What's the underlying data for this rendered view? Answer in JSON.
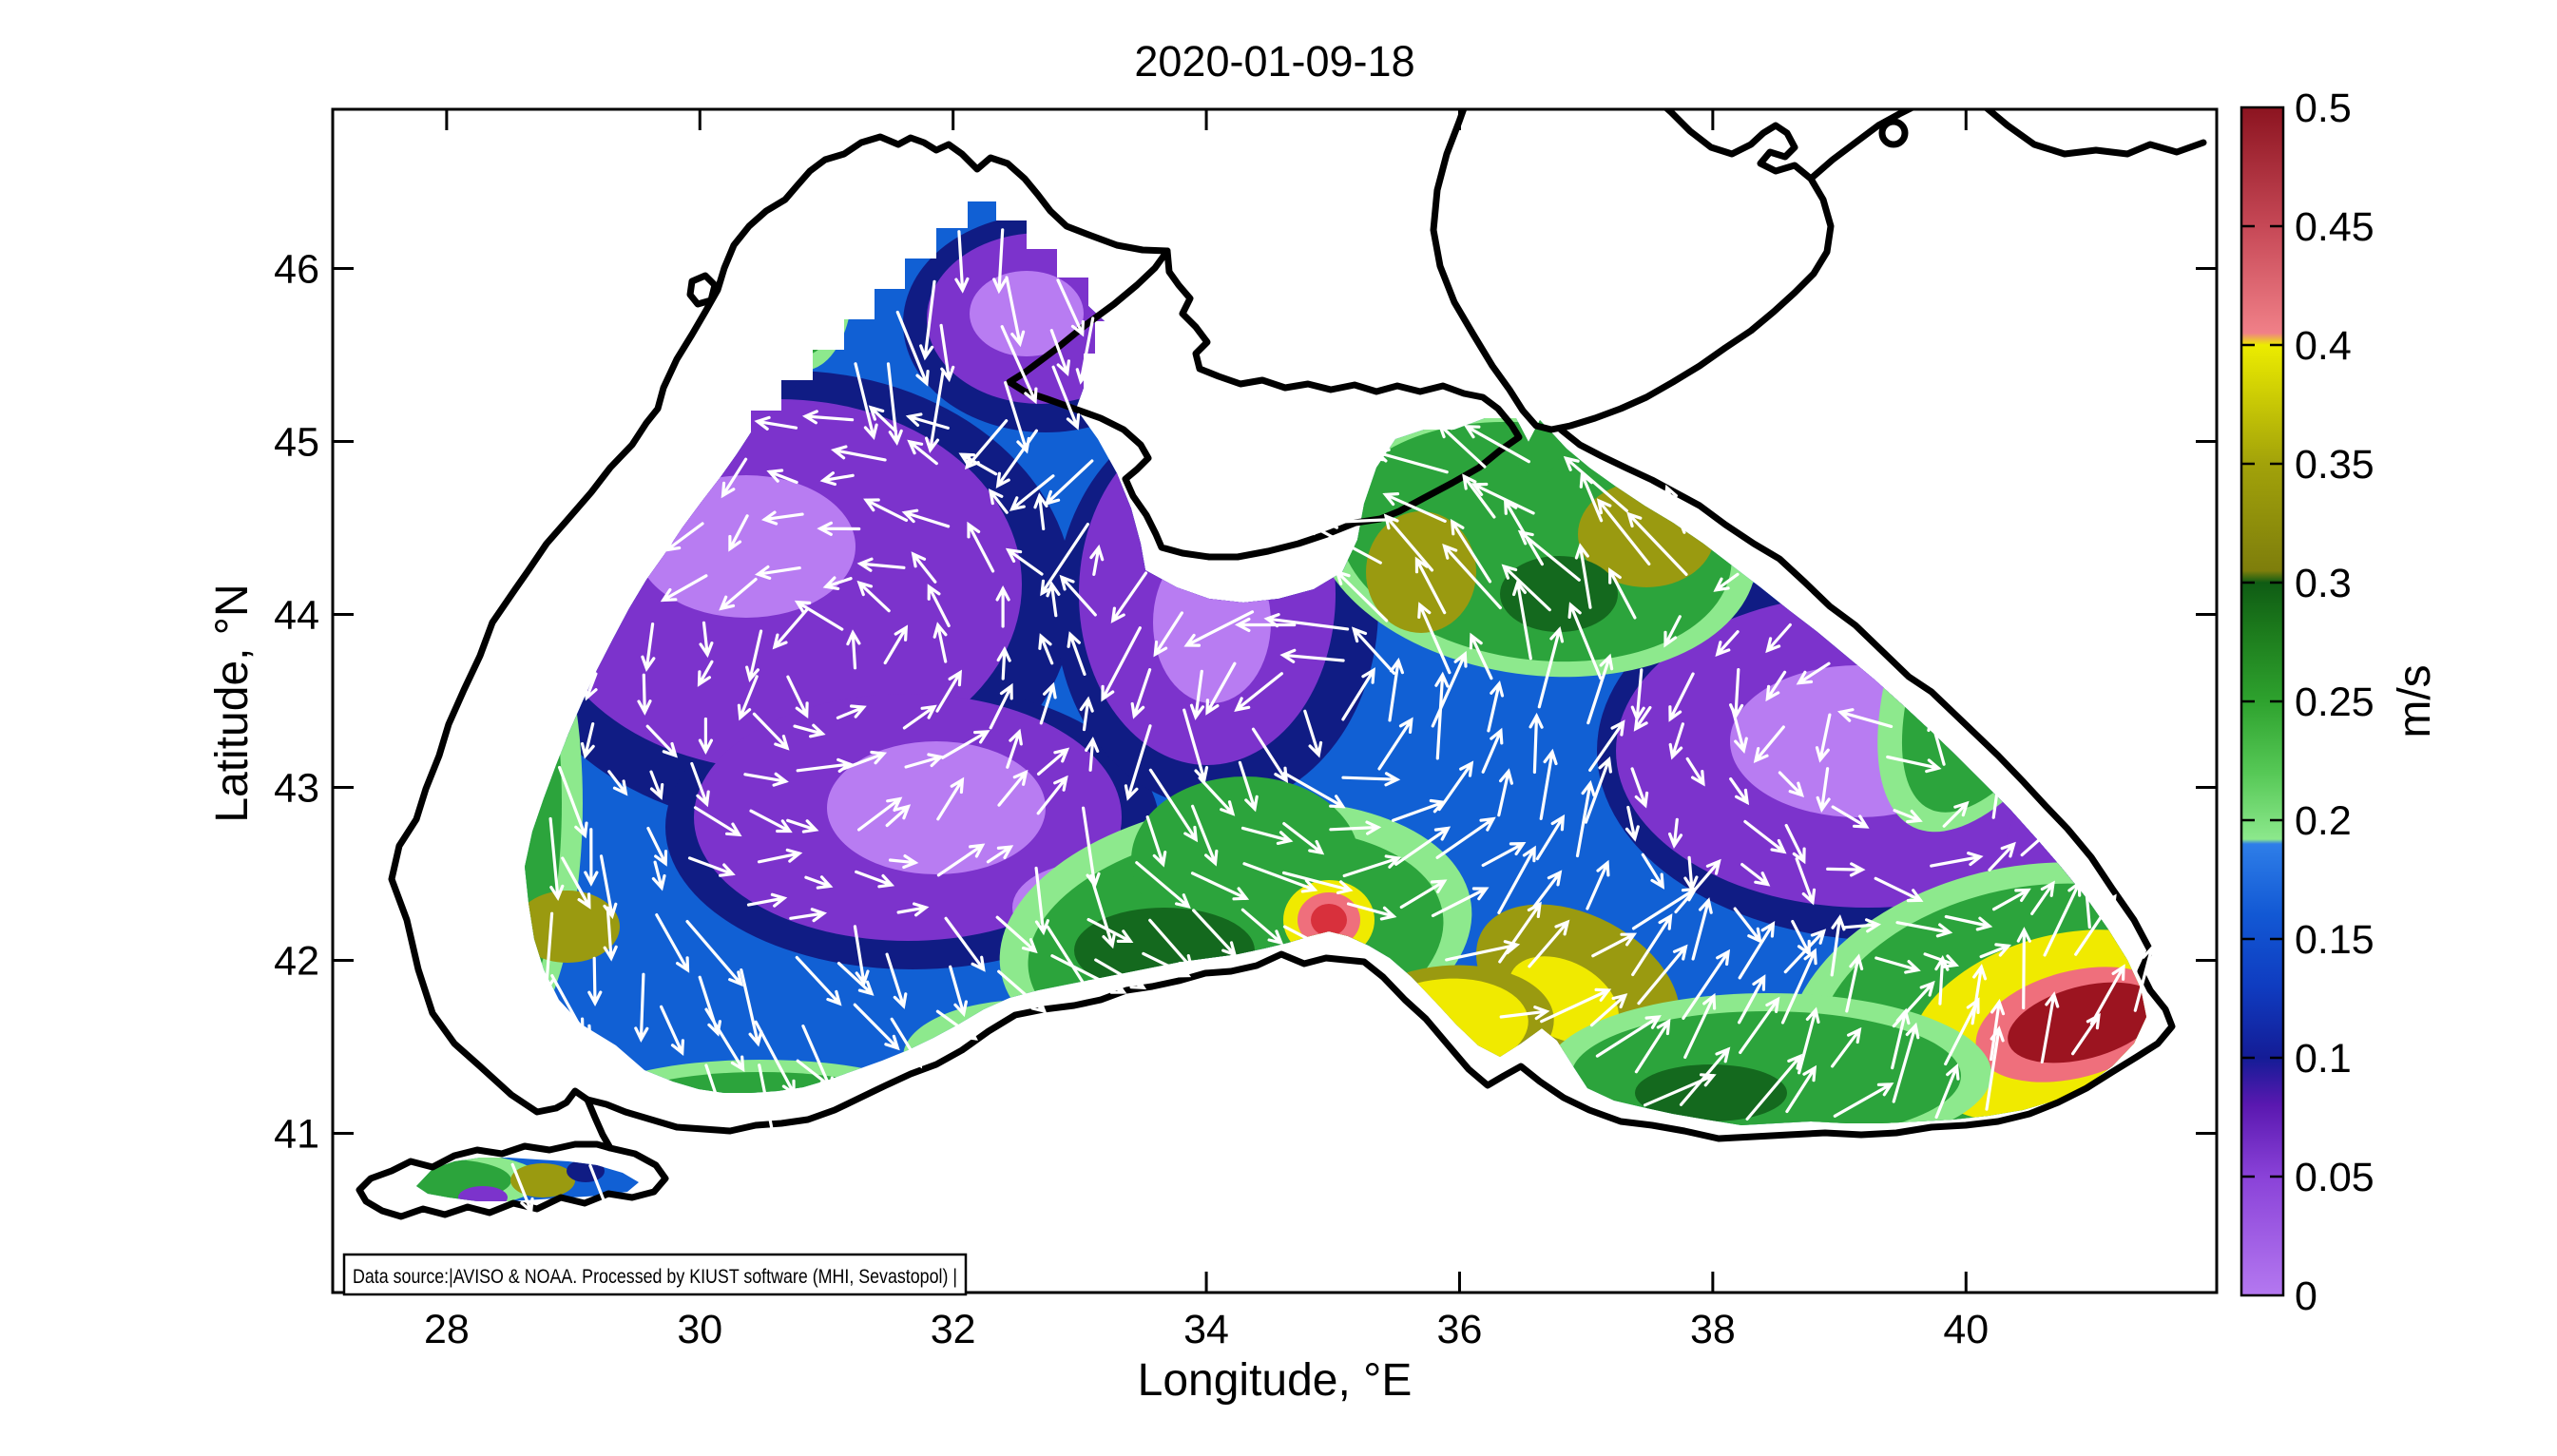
{
  "figure": {
    "title": "2020-01-09-18",
    "x_axis": {
      "label": "Longitude, °E",
      "ticks": [
        "28",
        "30",
        "32",
        "34",
        "36",
        "38",
        "40"
      ],
      "tick_values": [
        28,
        30,
        32,
        34,
        36,
        38,
        40
      ]
    },
    "y_axis": {
      "label": "Latitude, °N",
      "ticks": [
        "41",
        "42",
        "43",
        "44",
        "45",
        "46"
      ],
      "tick_values": [
        41,
        42,
        43,
        44,
        45,
        46
      ]
    },
    "colorbar": {
      "label": "m/s",
      "ticks": [
        "0",
        "0.05",
        "0.1",
        "0.15",
        "0.2",
        "0.25",
        "0.3",
        "0.35",
        "0.4",
        "0.45",
        "0.5"
      ],
      "tick_values": [
        0,
        0.05,
        0.1,
        0.15,
        0.2,
        0.25,
        0.3,
        0.35,
        0.4,
        0.45,
        0.5
      ],
      "min": 0,
      "max": 0.5
    },
    "annotation": "Data source:|AVISO & NOAA. Processed by KIUST software (MHI, Sevastopol) |"
  },
  "chart_data": {
    "type": "heatmap",
    "subtype": "geographic_vector_field",
    "region": "Black Sea and Sea of Marmara surface current speed with current-direction arrows; Sea of Azov has no data",
    "title": "2020-01-09-18",
    "xlabel": "Longitude, °E",
    "ylabel": "Latitude, °N",
    "xlim": [
      27.1,
      42.0
    ],
    "ylim": [
      40.1,
      46.9
    ],
    "value_label": "m/s",
    "value_range": [
      0,
      0.5
    ],
    "colorbar_position": "right, vertical",
    "grid": false,
    "colormap": [
      {
        "value": 0.0,
        "color": "#b478f0"
      },
      {
        "value": 0.05,
        "color": "#8a42d8"
      },
      {
        "value": 0.08,
        "color": "#5a18b0"
      },
      {
        "value": 0.1,
        "color": "#141c96"
      },
      {
        "value": 0.13,
        "color": "#0f3cc0"
      },
      {
        "value": 0.16,
        "color": "#1258d4"
      },
      {
        "value": 0.19,
        "color": "#2e7ee8"
      },
      {
        "value": 0.192,
        "color": "#8ce88c"
      },
      {
        "value": 0.22,
        "color": "#56c856"
      },
      {
        "value": 0.25,
        "color": "#2ea22e"
      },
      {
        "value": 0.28,
        "color": "#1c7a1c"
      },
      {
        "value": 0.3,
        "color": "#0f5c14"
      },
      {
        "value": 0.305,
        "color": "#7e7e0c"
      },
      {
        "value": 0.35,
        "color": "#a2a20a"
      },
      {
        "value": 0.4,
        "color": "#ecec00"
      },
      {
        "value": 0.405,
        "color": "#f08088"
      },
      {
        "value": 0.45,
        "color": "#c64856"
      },
      {
        "value": 0.5,
        "color": "#8c1420"
      }
    ],
    "features": [
      {
        "name": "western cyclonic gyre interior (slow)",
        "lon": 30.8,
        "lat": 43.6,
        "speed_ms": "<0.05"
      },
      {
        "name": "eastern basin interior (slow)",
        "lon": 39.3,
        "lat": 43.2,
        "speed_ms": "<0.05"
      },
      {
        "name": "Rim Current band along the coasts (cyclonic)",
        "speed_ms": "0.2-0.3"
      },
      {
        "name": "coastal jet maximum near Sinop",
        "lon": 34.9,
        "lat": 42.2,
        "speed_ms": "~0.45"
      },
      {
        "name": "southeastern maximum (Batumi region)",
        "lon": 40.8,
        "lat": 41.6,
        "speed_ms": "~0.5"
      },
      {
        "name": "yellow band northeast of Sinop",
        "lon": 36.0,
        "lat": 41.7,
        "speed_ms": "0.35-0.4"
      },
      {
        "name": "olive patches southeast of Crimea / NE basin",
        "lon": 35.7,
        "lat": 43.3,
        "speed_ms": "~0.33"
      },
      {
        "name": "northwestern shelf southward flow",
        "lon": 31.5,
        "lat": 45.8,
        "speed_ms": "0.1-0.2"
      },
      {
        "name": "no-data areas",
        "note": "Sea of Azov and a narrow nearshore strip are blank (white)"
      }
    ],
    "vector_field": {
      "arrow_color": "#ffffff",
      "pattern": "cyclonic (counterclockwise) basin-scale circulation",
      "description": "white arrows on a regular grid, longer arrows in Rim Current band"
    },
    "palette": {
      "background": "#ffffff",
      "axis_color": "#000000",
      "coast": "#000000",
      "arrow": "#ffffff",
      "base_blue": "#1160d4",
      "navy": "#101c84",
      "purple": "#7c33cc",
      "violet": "#b87cf2",
      "green": "#2ca43c",
      "light_green": "#8de98d",
      "dark_green": "#14691e",
      "olive": "#9a9a10",
      "yellow": "#f0ea00",
      "pink": "#ef6f7c",
      "red": "#d8303c",
      "dark_red": "#9c1420"
    }
  }
}
